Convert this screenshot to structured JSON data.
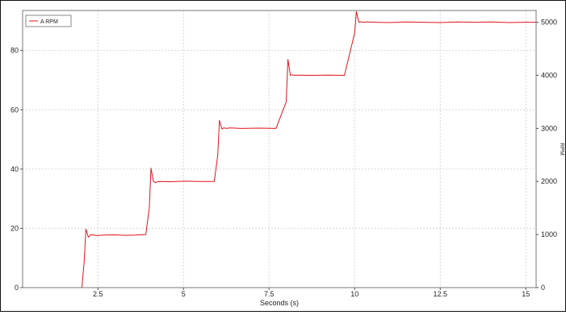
{
  "chart_data": {
    "type": "line",
    "xlabel": "Seconds (s)",
    "ylabel_right": "RPM",
    "xlim": [
      0.3,
      15.3
    ],
    "ylim_left": [
      0,
      93.5
    ],
    "ylim_right": [
      0,
      5222
    ],
    "x_ticks": [
      2.5,
      5,
      7.5,
      10,
      12.5,
      15
    ],
    "x_tick_labels": [
      "2.5",
      "5",
      "7.5",
      "10",
      "12.5",
      "15"
    ],
    "y_left_ticks": [
      0,
      20,
      40,
      60,
      80
    ],
    "y_left_tick_labels": [
      "0",
      "20",
      "40",
      "60",
      "80"
    ],
    "y_right_ticks": [
      0,
      1000,
      2000,
      3000,
      4000,
      5000
    ],
    "y_right_tick_labels": [
      "0",
      "1000",
      "2000",
      "3000",
      "4000",
      "5000"
    ],
    "grid": true,
    "legend_position": "top-left",
    "series": [
      {
        "name": "A RPM",
        "color": "#e0141c",
        "axis": "right",
        "x": [
          2.03,
          2.1,
          2.15,
          2.22,
          2.3,
          2.45,
          2.7,
          3.0,
          3.3,
          3.6,
          3.9,
          4.0,
          4.05,
          4.12,
          4.18,
          4.25,
          4.35,
          4.6,
          5.0,
          5.5,
          5.9,
          6.0,
          6.05,
          6.12,
          6.18,
          6.25,
          6.35,
          6.7,
          7.2,
          7.7,
          8.0,
          8.05,
          8.12,
          8.18,
          8.25,
          8.35,
          8.7,
          9.2,
          9.7,
          10.0,
          10.05,
          10.12,
          10.18,
          10.25,
          10.35,
          10.6,
          11.0,
          11.5,
          12.0,
          12.5,
          13.0,
          13.5,
          14.0,
          14.5,
          15.0,
          15.3
        ],
        "y": [
          0,
          500,
          1100,
          950,
          1000,
          980,
          990,
          995,
          985,
          990,
          1000,
          1500,
          2250,
          2000,
          1980,
          1995,
          2000,
          1995,
          2005,
          2000,
          2000,
          2500,
          3150,
          2990,
          3010,
          3000,
          3010,
          3000,
          3005,
          3000,
          3500,
          4300,
          4000,
          4010,
          4000,
          4005,
          4000,
          4005,
          4000,
          4800,
          5200,
          5000,
          5010,
          5000,
          5005,
          5000,
          4995,
          5005,
          5000,
          4995,
          5005,
          5000,
          5005,
          4995,
          5000,
          5000
        ]
      }
    ]
  }
}
